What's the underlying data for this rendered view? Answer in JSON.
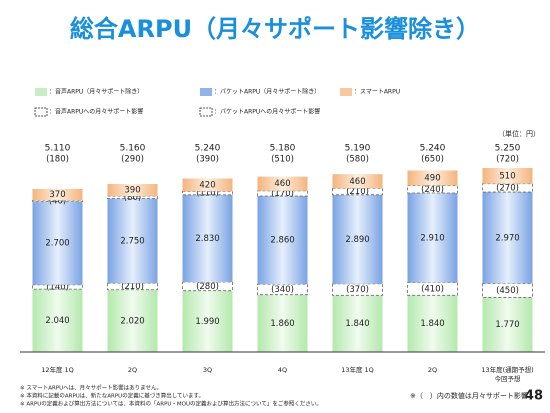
{
  "chart_data": {
    "type": "stacked-bar",
    "title": "総合ARPU（月々サポート影響除き）",
    "unit": "（単位：円）",
    "categories": [
      "12年度 1Q",
      "2Q",
      "3Q",
      "4Q",
      "13年度 1Q",
      "2Q",
      "13年度(通期予想)"
    ],
    "category_sublabels": [
      null,
      null,
      null,
      null,
      null,
      null,
      "今回予想"
    ],
    "series": [
      {
        "name": "：音声ARPU（月々サポート除き）",
        "color": "#c8efc4",
        "style": "solid",
        "values": [
          2040,
          2020,
          1990,
          1860,
          1840,
          1840,
          1770
        ],
        "value_labels": [
          "2.040",
          "2.020",
          "1.990",
          "1.860",
          "1.840",
          "1.840",
          "1.770"
        ]
      },
      {
        "name": "：音声ARPUへの月々サポート影響",
        "color": "#ffffff",
        "style": "dashed",
        "values": [
          140,
          210,
          280,
          340,
          370,
          410,
          450
        ],
        "value_labels": [
          "(140)",
          "(210)",
          "(280)",
          "(340)",
          "(370)",
          "(410)",
          "(450)"
        ]
      },
      {
        "name": "：パケットARPU（月々サポート除き）",
        "color": "#8fb3ea",
        "style": "solid",
        "values": [
          2700,
          2750,
          2830,
          2860,
          2890,
          2910,
          2970
        ],
        "value_labels": [
          "2.700",
          "2.750",
          "2.830",
          "2.860",
          "2.890",
          "2.910",
          "2.970"
        ]
      },
      {
        "name": "：パケットARPUへの月々サポート影響",
        "color": "#ffffff",
        "style": "dashed",
        "values": [
          40,
          80,
          110,
          170,
          210,
          240,
          270
        ],
        "value_labels": [
          "(40)",
          "(80)",
          "(110)",
          "(170)",
          "(210)",
          "(240)",
          "(270)"
        ]
      },
      {
        "name": "：スマートARPU",
        "color": "#f8c9a0",
        "style": "solid",
        "values": [
          370,
          390,
          420,
          460,
          460,
          490,
          510
        ]
      }
    ],
    "totals": {
      "values": [
        5110,
        5160,
        5240,
        5180,
        5190,
        5240,
        5250
      ],
      "value_labels": [
        "5.110",
        "5.160",
        "5.240",
        "5.180",
        "5.190",
        "5.240",
        "5.250"
      ]
    },
    "total_impacts": {
      "values": [
        180,
        290,
        390,
        510,
        580,
        650,
        720
      ],
      "value_labels": [
        "(180)",
        "(290)",
        "(390)",
        "(510)",
        "(580)",
        "(650)",
        "(720)"
      ]
    },
    "notes": [
      "※ スマートARPUへは、月々サポート影響はありません。",
      "※ 本資料に記載のARPUは、新たなARPUの定義に基づき算出しています。",
      "※ ARPUの定義および算出方法については、本資料の「ARPU・MOUの定義および算出方法について」をご参照ください。"
    ],
    "paren_note": "※（　）内の数値は月々サポート影響",
    "page_number": "48"
  }
}
